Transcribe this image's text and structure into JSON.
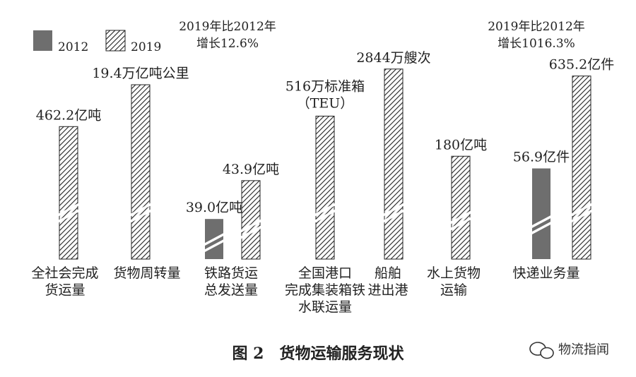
{
  "chart_data": {
    "type": "bar",
    "title": "",
    "caption": "图 2　货物运输服务现状",
    "legend": [
      {
        "name": "2012",
        "style": "solid",
        "color": "#6e6e6e"
      },
      {
        "name": "2019",
        "style": "hatched",
        "color": "#222222"
      }
    ],
    "annotations": [
      {
        "id": "rail",
        "lines": [
          "2019年比2012年",
          "增长12.6%"
        ]
      },
      {
        "id": "express",
        "lines": [
          "2019年比2012年",
          "增长1016.3%"
        ]
      }
    ],
    "categories": [
      {
        "id": "freight-volume",
        "lines": [
          "全社会完成",
          "货运量"
        ]
      },
      {
        "id": "turnover",
        "lines": [
          "货物周转量"
        ]
      },
      {
        "id": "rail",
        "lines": [
          "铁路货运",
          "总发送量"
        ]
      },
      {
        "id": "port-container",
        "lines": [
          "全国港口",
          "完成集装箱铁",
          "水联运量"
        ]
      },
      {
        "id": "ship",
        "lines": [
          "船舶",
          "进出港"
        ]
      },
      {
        "id": "water",
        "lines": [
          "水上货物",
          "运输"
        ]
      },
      {
        "id": "express",
        "lines": [
          "快递业务量"
        ]
      }
    ],
    "series": [
      {
        "name": "2012",
        "values": [
          null,
          null,
          "39.0亿吨",
          null,
          null,
          null,
          "56.9亿件"
        ]
      },
      {
        "name": "2019",
        "values": [
          "462.2亿吨",
          "19.4万亿吨公里",
          "43.9亿吨",
          [
            "516万标准箱",
            "（TEU）"
          ],
          "2844万艘次",
          "180亿吨",
          "635.2亿件"
        ]
      }
    ],
    "bar_levels_2012": [
      null,
      null,
      0.23,
      null,
      null,
      null,
      0.52
    ],
    "bar_levels_2019": [
      0.76,
      1.0,
      0.45,
      0.82,
      1.09,
      0.59,
      1.05
    ],
    "axis_breaks": true
  },
  "watermark": {
    "text": "物流指闻",
    "icon": "wechat-icon"
  },
  "colors": {
    "solid": "#6e6e6e",
    "hatch": "#222222",
    "break": "#ffffff"
  }
}
